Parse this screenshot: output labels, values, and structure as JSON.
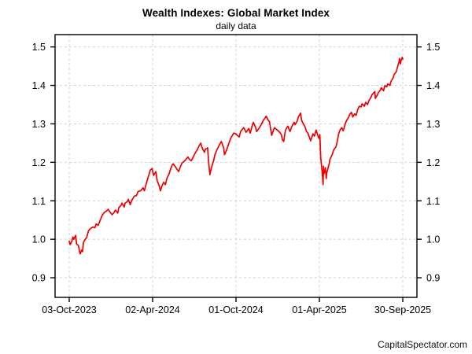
{
  "header": {
    "title": "Wealth Indexes: Global Market Index",
    "subtitle": "daily data"
  },
  "footer": {
    "watermark": "CapitalSpectator.com"
  },
  "chart_data": {
    "type": "line",
    "title": "Wealth Indexes: Global Market Index",
    "subtitle": "daily data",
    "legend_position": "none",
    "grid": {
      "show": true,
      "style": "dashed",
      "color": "#d2d2d2"
    },
    "axis_color": "#000000",
    "line_color": "#ee0000",
    "ylim": [
      0.849,
      1.532
    ],
    "y_ticks": [
      0.9,
      1.0,
      1.1,
      1.2,
      1.3,
      1.4,
      1.5
    ],
    "y_axis_sides": [
      "left",
      "right"
    ],
    "x_range": [
      "2023-10-03",
      "2025-09-30"
    ],
    "x_ticks": [
      {
        "label": "03-Oct-2023",
        "date": "2023-10-03"
      },
      {
        "label": "02-Apr-2024",
        "date": "2024-04-02"
      },
      {
        "label": "01-Oct-2024",
        "date": "2024-10-01"
      },
      {
        "label": "01-Apr-2025",
        "date": "2025-04-01"
      },
      {
        "label": "30-Sep-2025",
        "date": "2025-09-30"
      }
    ],
    "series_name": "Global Market Index (wealth index, daily)",
    "points": [
      [
        "2023-10-03",
        0.995
      ],
      [
        "2023-10-05",
        0.986
      ],
      [
        "2023-10-09",
        0.996
      ],
      [
        "2023-10-11",
        1.006
      ],
      [
        "2023-10-13",
        1.0
      ],
      [
        "2023-10-17",
        1.01
      ],
      [
        "2023-10-19",
        0.988
      ],
      [
        "2023-10-23",
        0.984
      ],
      [
        "2023-10-26",
        0.966
      ],
      [
        "2023-10-27",
        0.962
      ],
      [
        "2023-10-30",
        0.972
      ],
      [
        "2023-11-01",
        0.968
      ],
      [
        "2023-11-03",
        0.992
      ],
      [
        "2023-11-07",
        1.0
      ],
      [
        "2023-11-10",
        1.004
      ],
      [
        "2023-11-14",
        1.022
      ],
      [
        "2023-11-17",
        1.026
      ],
      [
        "2023-11-21",
        1.03
      ],
      [
        "2023-11-24",
        1.032
      ],
      [
        "2023-11-28",
        1.03
      ],
      [
        "2023-12-01",
        1.04
      ],
      [
        "2023-12-05",
        1.036
      ],
      [
        "2023-12-08",
        1.044
      ],
      [
        "2023-12-13",
        1.06
      ],
      [
        "2023-12-15",
        1.064
      ],
      [
        "2023-12-19",
        1.07
      ],
      [
        "2023-12-22",
        1.072
      ],
      [
        "2023-12-27",
        1.078
      ],
      [
        "2023-12-29",
        1.074
      ],
      [
        "2024-01-03",
        1.066
      ],
      [
        "2024-01-05",
        1.064
      ],
      [
        "2024-01-09",
        1.07
      ],
      [
        "2024-01-12",
        1.076
      ],
      [
        "2024-01-17",
        1.068
      ],
      [
        "2024-01-19",
        1.082
      ],
      [
        "2024-01-24",
        1.088
      ],
      [
        "2024-01-26",
        1.094
      ],
      [
        "2024-01-31",
        1.084
      ],
      [
        "2024-02-02",
        1.094
      ],
      [
        "2024-02-07",
        1.098
      ],
      [
        "2024-02-09",
        1.104
      ],
      [
        "2024-02-13",
        1.09
      ],
      [
        "2024-02-16",
        1.1
      ],
      [
        "2024-02-22",
        1.112
      ],
      [
        "2024-02-27",
        1.114
      ],
      [
        "2024-03-01",
        1.124
      ],
      [
        "2024-03-07",
        1.126
      ],
      [
        "2024-03-12",
        1.134
      ],
      [
        "2024-03-15",
        1.126
      ],
      [
        "2024-03-20",
        1.148
      ],
      [
        "2024-03-25",
        1.168
      ],
      [
        "2024-03-28",
        1.18
      ],
      [
        "2024-04-01",
        1.184
      ],
      [
        "2024-04-04",
        1.166
      ],
      [
        "2024-04-09",
        1.176
      ],
      [
        "2024-04-12",
        1.152
      ],
      [
        "2024-04-16",
        1.14
      ],
      [
        "2024-04-19",
        1.126
      ],
      [
        "2024-04-23",
        1.14
      ],
      [
        "2024-04-26",
        1.148
      ],
      [
        "2024-04-30",
        1.142
      ],
      [
        "2024-05-03",
        1.158
      ],
      [
        "2024-05-08",
        1.17
      ],
      [
        "2024-05-10",
        1.178
      ],
      [
        "2024-05-15",
        1.194
      ],
      [
        "2024-05-17",
        1.196
      ],
      [
        "2024-05-22",
        1.188
      ],
      [
        "2024-05-24",
        1.184
      ],
      [
        "2024-05-29",
        1.176
      ],
      [
        "2024-05-31",
        1.184
      ],
      [
        "2024-06-05",
        1.198
      ],
      [
        "2024-06-07",
        1.2
      ],
      [
        "2024-06-11",
        1.204
      ],
      [
        "2024-06-14",
        1.208
      ],
      [
        "2024-06-18",
        1.214
      ],
      [
        "2024-06-21",
        1.208
      ],
      [
        "2024-06-25",
        1.204
      ],
      [
        "2024-06-28",
        1.21
      ],
      [
        "2024-07-03",
        1.222
      ],
      [
        "2024-07-09",
        1.234
      ],
      [
        "2024-07-12",
        1.242
      ],
      [
        "2024-07-16",
        1.25
      ],
      [
        "2024-07-19",
        1.238
      ],
      [
        "2024-07-24",
        1.226
      ],
      [
        "2024-07-26",
        1.234
      ],
      [
        "2024-07-31",
        1.238
      ],
      [
        "2024-08-02",
        1.204
      ],
      [
        "2024-08-05",
        1.168
      ],
      [
        "2024-08-08",
        1.184
      ],
      [
        "2024-08-13",
        1.204
      ],
      [
        "2024-08-16",
        1.22
      ],
      [
        "2024-08-21",
        1.234
      ],
      [
        "2024-08-26",
        1.246
      ],
      [
        "2024-08-30",
        1.254
      ],
      [
        "2024-09-04",
        1.238
      ],
      [
        "2024-09-06",
        1.22
      ],
      [
        "2024-09-11",
        1.234
      ],
      [
        "2024-09-17",
        1.254
      ],
      [
        "2024-09-20",
        1.264
      ],
      [
        "2024-09-26",
        1.276
      ],
      [
        "2024-10-01",
        1.274
      ],
      [
        "2024-10-04",
        1.27
      ],
      [
        "2024-10-08",
        1.266
      ],
      [
        "2024-10-11",
        1.28
      ],
      [
        "2024-10-15",
        1.286
      ],
      [
        "2024-10-18",
        1.29
      ],
      [
        "2024-10-23",
        1.278
      ],
      [
        "2024-10-29",
        1.288
      ],
      [
        "2024-11-01",
        1.276
      ],
      [
        "2024-11-06",
        1.298
      ],
      [
        "2024-11-08",
        1.304
      ],
      [
        "2024-11-13",
        1.29
      ],
      [
        "2024-11-15",
        1.28
      ],
      [
        "2024-11-20",
        1.288
      ],
      [
        "2024-11-26",
        1.3
      ],
      [
        "2024-11-29",
        1.308
      ],
      [
        "2024-12-04",
        1.316
      ],
      [
        "2024-12-06",
        1.32
      ],
      [
        "2024-12-10",
        1.31
      ],
      [
        "2024-12-13",
        1.306
      ],
      [
        "2024-12-18",
        1.27
      ],
      [
        "2024-12-20",
        1.278
      ],
      [
        "2024-12-24",
        1.29
      ],
      [
        "2024-12-30",
        1.284
      ],
      [
        "2025-01-03",
        1.28
      ],
      [
        "2025-01-08",
        1.272
      ],
      [
        "2025-01-10",
        1.26
      ],
      [
        "2025-01-13",
        1.254
      ],
      [
        "2025-01-17",
        1.284
      ],
      [
        "2025-01-22",
        1.294
      ],
      [
        "2025-01-27",
        1.28
      ],
      [
        "2025-01-31",
        1.294
      ],
      [
        "2025-02-05",
        1.304
      ],
      [
        "2025-02-07",
        1.298
      ],
      [
        "2025-02-12",
        1.308
      ],
      [
        "2025-02-14",
        1.318
      ],
      [
        "2025-02-19",
        1.328
      ],
      [
        "2025-02-21",
        1.31
      ],
      [
        "2025-02-25",
        1.3
      ],
      [
        "2025-02-28",
        1.294
      ],
      [
        "2025-03-04",
        1.28
      ],
      [
        "2025-03-07",
        1.276
      ],
      [
        "2025-03-11",
        1.262
      ],
      [
        "2025-03-13",
        1.256
      ],
      [
        "2025-03-18",
        1.274
      ],
      [
        "2025-03-21",
        1.268
      ],
      [
        "2025-03-25",
        1.284
      ],
      [
        "2025-03-28",
        1.272
      ],
      [
        "2025-03-31",
        1.262
      ],
      [
        "2025-04-02",
        1.272
      ],
      [
        "2025-04-04",
        1.212
      ],
      [
        "2025-04-07",
        1.176
      ],
      [
        "2025-04-08",
        1.16
      ],
      [
        "2025-04-09",
        1.142
      ],
      [
        "2025-04-10",
        1.19
      ],
      [
        "2025-04-11",
        1.17
      ],
      [
        "2025-04-14",
        1.186
      ],
      [
        "2025-04-16",
        1.158
      ],
      [
        "2025-04-17",
        1.172
      ],
      [
        "2025-04-22",
        1.194
      ],
      [
        "2025-04-24",
        1.208
      ],
      [
        "2025-04-29",
        1.22
      ],
      [
        "2025-05-02",
        1.232
      ],
      [
        "2025-05-07",
        1.24
      ],
      [
        "2025-05-09",
        1.248
      ],
      [
        "2025-05-13",
        1.274
      ],
      [
        "2025-05-16",
        1.284
      ],
      [
        "2025-05-20",
        1.29
      ],
      [
        "2025-05-23",
        1.282
      ],
      [
        "2025-05-28",
        1.302
      ],
      [
        "2025-05-30",
        1.308
      ],
      [
        "2025-06-04",
        1.318
      ],
      [
        "2025-06-06",
        1.324
      ],
      [
        "2025-06-10",
        1.33
      ],
      [
        "2025-06-13",
        1.318
      ],
      [
        "2025-06-17",
        1.326
      ],
      [
        "2025-06-20",
        1.322
      ],
      [
        "2025-06-24",
        1.338
      ],
      [
        "2025-06-27",
        1.346
      ],
      [
        "2025-07-01",
        1.344
      ],
      [
        "2025-07-03",
        1.352
      ],
      [
        "2025-07-08",
        1.346
      ],
      [
        "2025-07-11",
        1.356
      ],
      [
        "2025-07-15",
        1.35
      ],
      [
        "2025-07-18",
        1.36
      ],
      [
        "2025-07-23",
        1.37
      ],
      [
        "2025-07-25",
        1.376
      ],
      [
        "2025-07-28",
        1.38
      ],
      [
        "2025-07-31",
        1.384
      ],
      [
        "2025-08-01",
        1.366
      ],
      [
        "2025-08-05",
        1.374
      ],
      [
        "2025-08-08",
        1.382
      ],
      [
        "2025-08-12",
        1.388
      ],
      [
        "2025-08-14",
        1.394
      ],
      [
        "2025-08-19",
        1.386
      ],
      [
        "2025-08-22",
        1.4
      ],
      [
        "2025-08-26",
        1.396
      ],
      [
        "2025-08-28",
        1.404
      ],
      [
        "2025-09-02",
        1.4
      ],
      [
        "2025-09-04",
        1.41
      ],
      [
        "2025-09-09",
        1.42
      ],
      [
        "2025-09-11",
        1.428
      ],
      [
        "2025-09-15",
        1.434
      ],
      [
        "2025-09-17",
        1.44
      ],
      [
        "2025-09-19",
        1.45
      ],
      [
        "2025-09-22",
        1.462
      ],
      [
        "2025-09-23",
        1.47
      ],
      [
        "2025-09-25",
        1.456
      ],
      [
        "2025-09-26",
        1.464
      ],
      [
        "2025-09-29",
        1.473
      ],
      [
        "2025-09-30",
        1.468
      ]
    ]
  }
}
